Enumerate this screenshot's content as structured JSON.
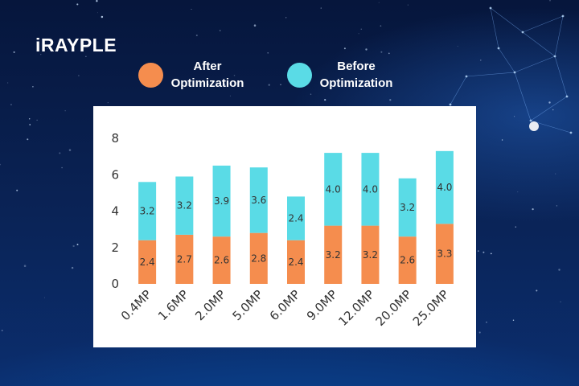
{
  "brand": {
    "logo_text": "iRAYPLE"
  },
  "colors": {
    "after": "#f58d4e",
    "before": "#5adbe6",
    "axis_text": "#333333",
    "background": "#0a2356",
    "panel": "#ffffff"
  },
  "legend": {
    "after_label": "After Optimization",
    "before_label": "Before Optimization"
  },
  "chart_data": {
    "type": "bar",
    "stacked": true,
    "categories": [
      "0.4MP",
      "1.6MP",
      "2.0MP",
      "5.0MP",
      "6.0MP",
      "9.0MP",
      "12.0MP",
      "20.0MP",
      "25.0MP"
    ],
    "series": [
      {
        "name": "After Optimization",
        "values": [
          2.4,
          2.7,
          2.6,
          2.8,
          2.4,
          3.2,
          3.2,
          2.6,
          3.3
        ]
      },
      {
        "name": "Before Optimization",
        "values": [
          3.2,
          3.2,
          3.9,
          3.6,
          2.4,
          4.0,
          4.0,
          3.2,
          4.0
        ]
      }
    ],
    "ylim": [
      0,
      8
    ],
    "yticks": [
      0,
      2,
      4,
      6,
      8
    ],
    "grid": false,
    "legend_position": "top"
  }
}
